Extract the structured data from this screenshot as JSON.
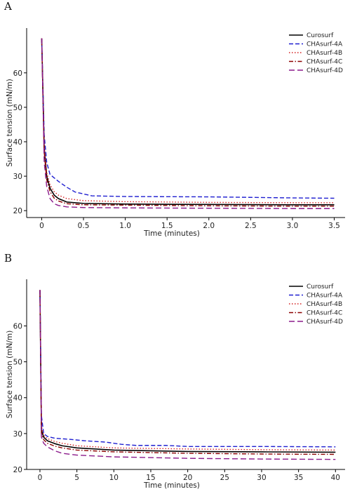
{
  "chart_data": [
    {
      "type": "line",
      "panel_label": "A",
      "xlabel": "Time (minutes)",
      "ylabel": "Surface tension (mN/m)",
      "xlim": [
        -0.18,
        3.63
      ],
      "ylim": [
        18,
        73
      ],
      "xticks": [
        0,
        0.5,
        1,
        1.5,
        2,
        2.5,
        3,
        3.5
      ],
      "xtick_labels": [
        "0",
        "0.5",
        "1.0",
        "1.5",
        "2.0",
        "2.5",
        "3.0",
        "3.5"
      ],
      "yticks": [
        20,
        30,
        40,
        50,
        60
      ],
      "ytick_labels": [
        "20",
        "30",
        "40",
        "50",
        "60"
      ],
      "legend_position": "top-right",
      "series": [
        {
          "name": "Curosurf",
          "color": "#000000",
          "style": "solid",
          "x": [
            0,
            0.03,
            0.06,
            0.1,
            0.15,
            0.2,
            0.3,
            0.5,
            1.0,
            2.0,
            3.0,
            3.5
          ],
          "y": [
            70,
            38,
            30,
            26.5,
            24.5,
            23.5,
            22.5,
            22.1,
            21.9,
            21.8,
            21.7,
            21.7
          ]
        },
        {
          "name": "CHAsurf-4A",
          "color": "#1f1fd0",
          "style": "dashed",
          "x": [
            0,
            0.03,
            0.06,
            0.1,
            0.15,
            0.2,
            0.3,
            0.4,
            0.6,
            1.0,
            2.0,
            3.0,
            3.5
          ],
          "y": [
            70,
            42,
            34,
            30.5,
            29.5,
            28.5,
            26.8,
            25.4,
            24.3,
            24.1,
            24.0,
            23.7,
            23.6
          ]
        },
        {
          "name": "CHAsurf-4B",
          "color": "#d42020",
          "style": "dotted",
          "x": [
            0,
            0.03,
            0.06,
            0.1,
            0.15,
            0.2,
            0.3,
            0.5,
            1.0,
            2.0,
            3.0,
            3.5
          ],
          "y": [
            70,
            39,
            31,
            27.5,
            25.5,
            24.5,
            23.5,
            22.9,
            22.6,
            22.4,
            22.3,
            22.3
          ]
        },
        {
          "name": "CHAsurf-4C",
          "color": "#8b0000",
          "style": "dashdot",
          "x": [
            0,
            0.03,
            0.06,
            0.1,
            0.15,
            0.2,
            0.3,
            0.5,
            1.0,
            2.0,
            3.0,
            3.5
          ],
          "y": [
            70,
            37,
            29,
            25.5,
            23.6,
            22.8,
            22.0,
            21.7,
            21.6,
            21.4,
            21.3,
            21.3
          ]
        },
        {
          "name": "CHAsurf-4D",
          "color": "#8b1a8b",
          "style": "longdash",
          "x": [
            0,
            0.03,
            0.06,
            0.1,
            0.15,
            0.2,
            0.3,
            0.5,
            1.0,
            2.0,
            3.0,
            3.5
          ],
          "y": [
            70,
            34,
            27,
            23.5,
            22.0,
            21.5,
            21.1,
            20.9,
            20.8,
            20.7,
            20.6,
            20.6
          ]
        }
      ]
    },
    {
      "type": "line",
      "panel_label": "B",
      "xlabel": "Time (minutes)",
      "ylabel": "Surface tension (mN/m)",
      "xlim": [
        -1.8,
        41.3
      ],
      "ylim": [
        20,
        73
      ],
      "xticks": [
        0,
        5,
        10,
        15,
        20,
        25,
        30,
        35,
        40
      ],
      "xtick_labels": [
        "0",
        "5",
        "10",
        "15",
        "20",
        "25",
        "30",
        "35",
        "40"
      ],
      "yticks": [
        20,
        30,
        40,
        50,
        60
      ],
      "ytick_labels": [
        "20",
        "30",
        "40",
        "50",
        "60"
      ],
      "legend_position": "top-right",
      "series": [
        {
          "name": "Curosurf",
          "color": "#000000",
          "style": "solid",
          "x": [
            0,
            0.2,
            0.5,
            1,
            2,
            3,
            5,
            10,
            20,
            30,
            40
          ],
          "y": [
            70,
            31,
            29,
            28,
            27.2,
            26.6,
            26.0,
            25.4,
            25.0,
            24.9,
            24.8
          ]
        },
        {
          "name": "CHAsurf-4A",
          "color": "#1f1fd0",
          "style": "dashed",
          "x": [
            0,
            0.2,
            0.5,
            1,
            2,
            4,
            6,
            9,
            11,
            13,
            17,
            20,
            30,
            40
          ],
          "y": [
            70,
            35,
            30,
            29.2,
            28.7,
            28.4,
            28.0,
            27.6,
            27.0,
            26.7,
            26.7,
            26.4,
            26.4,
            26.3
          ]
        },
        {
          "name": "CHAsurf-4B",
          "color": "#d42020",
          "style": "dotted",
          "x": [
            0,
            0.2,
            0.5,
            1,
            2,
            3,
            5,
            10,
            20,
            30,
            40
          ],
          "y": [
            70,
            32,
            29.5,
            28.6,
            27.8,
            27.3,
            26.6,
            26.0,
            25.7,
            25.5,
            25.4
          ]
        },
        {
          "name": "CHAsurf-4C",
          "color": "#8b0000",
          "style": "dashdot",
          "x": [
            0,
            0.2,
            0.5,
            1,
            2,
            3,
            5,
            10,
            20,
            30,
            40
          ],
          "y": [
            70,
            30,
            28.3,
            27.3,
            26.5,
            26.0,
            25.4,
            24.9,
            24.5,
            24.3,
            24.2
          ]
        },
        {
          "name": "CHAsurf-4D",
          "color": "#8b1a8b",
          "style": "longdash",
          "x": [
            0,
            0.2,
            0.5,
            1,
            2,
            3,
            5,
            10,
            20,
            30,
            40
          ],
          "y": [
            70,
            29,
            27.3,
            26.3,
            25.2,
            24.5,
            24.0,
            23.5,
            23.1,
            22.9,
            22.8
          ]
        }
      ]
    }
  ]
}
